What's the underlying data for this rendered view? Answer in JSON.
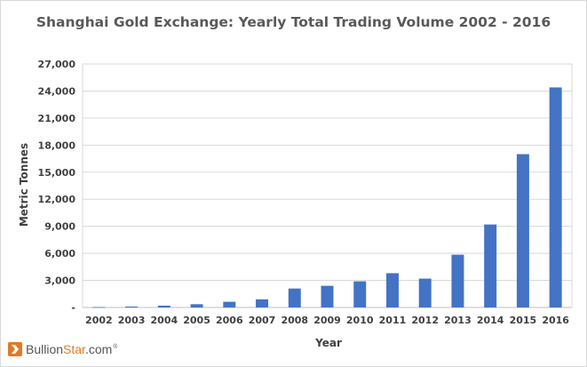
{
  "chart_data": {
    "type": "bar",
    "title": "Shanghai Gold Exchange: Yearly Total Trading Volume 2002 - 2016",
    "xlabel": "Year",
    "ylabel": "Metric Tonnes",
    "ylim": [
      0,
      27000
    ],
    "yticks": [
      "-",
      "3,000",
      "6,000",
      "9,000",
      "12,000",
      "15,000",
      "18,000",
      "21,000",
      "24,000",
      "27,000"
    ],
    "grid": true,
    "bar_color": "#4472c4",
    "categories": [
      "2002",
      "2003",
      "2004",
      "2005",
      "2006",
      "2007",
      "2008",
      "2009",
      "2010",
      "2011",
      "2012",
      "2013",
      "2014",
      "2015",
      "2016"
    ],
    "values": [
      45,
      100,
      200,
      360,
      630,
      900,
      2100,
      2400,
      2900,
      3800,
      3200,
      5850,
      9200,
      17000,
      24400
    ]
  },
  "logo": {
    "text_main": "Bullion",
    "text_accent": "Star",
    "text_suffix": ".com",
    "registered": "®",
    "accent_color": "#e07b24"
  }
}
